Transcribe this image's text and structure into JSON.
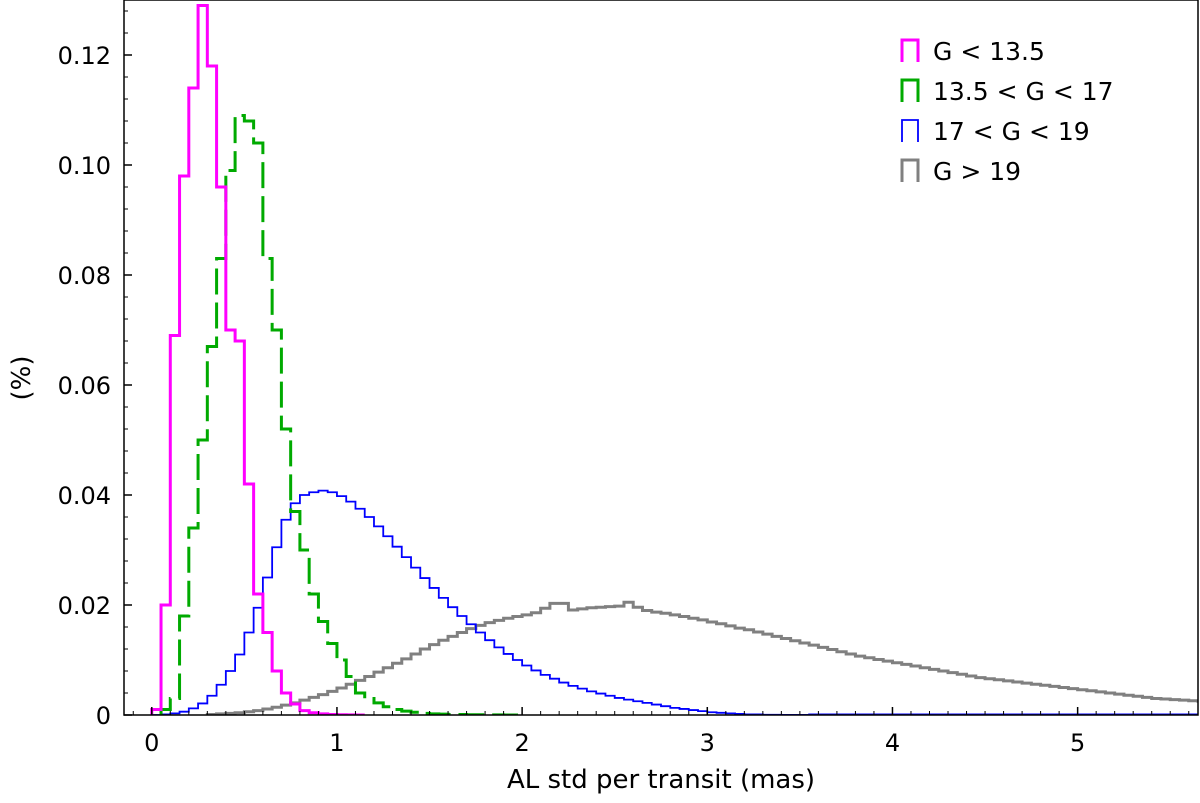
{
  "chart_data": {
    "type": "histogram-step",
    "title": "",
    "xlabel": "AL std per transit (mas)",
    "ylabel": "(%)",
    "xlim": [
      -0.15,
      5.65
    ],
    "ylim": [
      0,
      0.13
    ],
    "xticks": [
      0,
      1,
      2,
      3,
      4,
      5
    ],
    "yticks": [
      0,
      0.02,
      0.04,
      0.06,
      0.08,
      0.1,
      0.12
    ],
    "ytick_labels": [
      "0",
      "0.02",
      "0.04",
      "0.06",
      "0.08",
      "0.10",
      "0.12"
    ],
    "grid": false,
    "legend_position": "top-right",
    "series": [
      {
        "name": "G < 13.5",
        "color": "#ff00ff",
        "dash": "solid",
        "bin_width": 0.05,
        "x_start": 0.0,
        "values": [
          0.001,
          0.02,
          0.069,
          0.098,
          0.114,
          0.129,
          0.118,
          0.096,
          0.07,
          0.068,
          0.042,
          0.022,
          0.015,
          0.008,
          0.004,
          0.002,
          0.0008,
          0.0004,
          0.0002,
          0.0001,
          5e-05,
          2e-05,
          0.0
        ]
      },
      {
        "name": "13.5 < G < 17",
        "color": "#00aa00",
        "dash": "dashed",
        "bin_width": 0.05,
        "x_start": 0.05,
        "values": [
          0.001,
          0.003,
          0.018,
          0.034,
          0.05,
          0.067,
          0.083,
          0.099,
          0.109,
          0.108,
          0.104,
          0.083,
          0.07,
          0.052,
          0.037,
          0.03,
          0.022,
          0.017,
          0.013,
          0.01,
          0.007,
          0.004,
          0.003,
          0.0022,
          0.0015,
          0.001,
          0.0007,
          0.0005,
          0.0003,
          0.0002,
          0.00015,
          0.0001,
          8e-05,
          5e-05,
          4e-05,
          3e-05,
          2e-05,
          1e-05,
          0.0
        ]
      },
      {
        "name": "17 < G < 19",
        "color": "#0000ff",
        "dash": "solid",
        "bin_width": 0.05,
        "x_start": 0.0,
        "values": [
          0.0,
          0.0001,
          0.0003,
          0.0006,
          0.0012,
          0.0021,
          0.0035,
          0.0055,
          0.008,
          0.011,
          0.015,
          0.0195,
          0.025,
          0.0305,
          0.0355,
          0.0385,
          0.04,
          0.0405,
          0.0408,
          0.0405,
          0.0398,
          0.0388,
          0.0375,
          0.036,
          0.0343,
          0.0325,
          0.0306,
          0.0287,
          0.0268,
          0.0249,
          0.0231,
          0.0213,
          0.0196,
          0.018,
          0.0165,
          0.015,
          0.0136,
          0.0123,
          0.0111,
          0.01,
          0.009,
          0.0081,
          0.0073,
          0.0066,
          0.0059,
          0.0053,
          0.0048,
          0.0043,
          0.0039,
          0.0035,
          0.0031,
          0.0028,
          0.0025,
          0.0022,
          0.0019,
          0.0016,
          0.0013,
          0.0011,
          0.0009,
          0.0007,
          0.0005,
          0.0004,
          0.0003,
          0.0002,
          0.0001,
          0.0001,
          5e-05,
          5e-05,
          3e-05,
          2e-05,
          1e-05,
          0.0001,
          0.0001,
          0.0001,
          0.0001,
          0.0001,
          0.0001,
          0.0001,
          0.0001,
          0.0001,
          0.0001,
          0.0001,
          0.0001,
          0.0001,
          0.0001,
          0.0001,
          0.0001,
          0.0001,
          0.0001,
          0.0001,
          0.0001,
          0.0001,
          0.0001,
          0.0001,
          0.0001,
          0.0001,
          0.0001,
          0.0001,
          0.0001,
          0.0001,
          0.0001,
          0.0001,
          0.0001,
          0.0001,
          0.0001,
          0.0001,
          0.0001,
          0.0001,
          0.0001,
          0.0001,
          0.0001,
          0.0001,
          0.0001
        ]
      },
      {
        "name": "G > 19",
        "color": "#808080",
        "dash": "solid",
        "bin_width": 0.05,
        "x_start": 0.3,
        "values": [
          0.0001,
          0.0002,
          0.0003,
          0.0004,
          0.0006,
          0.0008,
          0.0011,
          0.0014,
          0.0018,
          0.0022,
          0.0027,
          0.0032,
          0.0037,
          0.0043,
          0.0049,
          0.0056,
          0.0063,
          0.007,
          0.0078,
          0.0086,
          0.0094,
          0.0102,
          0.0111,
          0.012,
          0.0128,
          0.0136,
          0.0143,
          0.015,
          0.0157,
          0.0163,
          0.0168,
          0.0172,
          0.0176,
          0.0179,
          0.0182,
          0.0186,
          0.0194,
          0.0203,
          0.0203,
          0.0191,
          0.0193,
          0.0195,
          0.0196,
          0.0197,
          0.0198,
          0.0205,
          0.0196,
          0.019,
          0.0187,
          0.0185,
          0.0182,
          0.0179,
          0.0176,
          0.0173,
          0.0169,
          0.0166,
          0.0162,
          0.0158,
          0.0155,
          0.0151,
          0.0147,
          0.0143,
          0.0139,
          0.0135,
          0.0131,
          0.0127,
          0.0123,
          0.0119,
          0.0115,
          0.0111,
          0.0107,
          0.0104,
          0.0101,
          0.0098,
          0.0095,
          0.0092,
          0.0089,
          0.0086,
          0.0083,
          0.008,
          0.0077,
          0.0074,
          0.0071,
          0.0068,
          0.0066,
          0.0064,
          0.0062,
          0.006,
          0.0058,
          0.0056,
          0.0054,
          0.0052,
          0.005,
          0.0048,
          0.0046,
          0.0044,
          0.0042,
          0.004,
          0.0038,
          0.0036,
          0.0034,
          0.0032,
          0.003,
          0.0029,
          0.0028,
          0.0027,
          0.0026,
          0.0025,
          0.0024,
          0.0023,
          0.0022,
          0.0021,
          0.002
        ]
      }
    ]
  }
}
